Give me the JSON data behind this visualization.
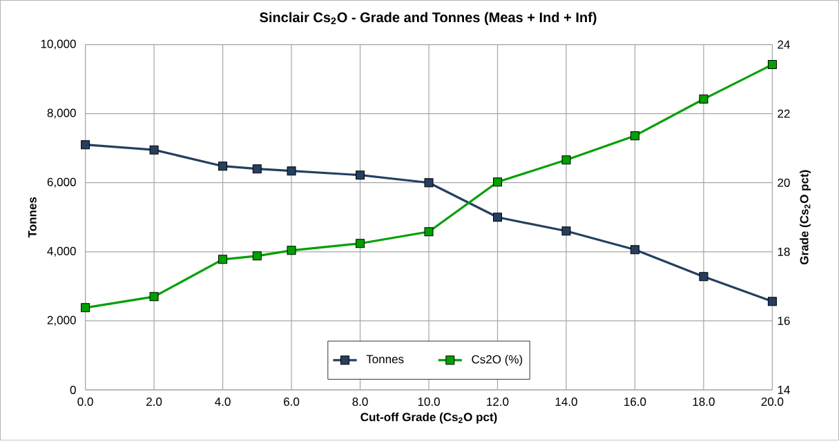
{
  "chart_data": {
    "type": "line",
    "title": "Sinclair Cs$_{2}$O - Grade and Tonnes (Meas + Ind + Inf)",
    "xlabel": "Cut-off Grade (Cs$_{2}$O pct)",
    "ylabel": "Tonnes",
    "y2label": "Grade (Cs$_{2}$O pct)",
    "x": [
      0,
      2,
      4,
      5,
      6,
      8,
      10,
      12,
      14,
      16,
      18,
      20
    ],
    "series": [
      {
        "name": "Tonnes",
        "color": "#243f60",
        "values": [
          7100,
          6950,
          6480,
          6400,
          6340,
          6220,
          6000,
          5000,
          4600,
          4060,
          3280,
          2560
        ]
      },
      {
        "name": "Cs2O (%)",
        "color": "#00a000",
        "axis": "y2",
        "values": [
          16.38,
          16.7,
          17.78,
          17.88,
          18.04,
          18.24,
          18.58,
          20.02,
          20.66,
          21.36,
          22.42,
          23.42
        ]
      }
    ],
    "xlim": [
      0,
      20
    ],
    "xticks": [
      {
        "value": 0,
        "label": "0.0"
      },
      {
        "value": 2,
        "label": "2.0"
      },
      {
        "value": 4,
        "label": "4.0"
      },
      {
        "value": 6,
        "label": "6.0"
      },
      {
        "value": 8,
        "label": "8.0"
      },
      {
        "value": 10,
        "label": "10.0"
      },
      {
        "value": 12,
        "label": "12.0"
      },
      {
        "value": 14,
        "label": "14.0"
      },
      {
        "value": 16,
        "label": "16.0"
      },
      {
        "value": 18,
        "label": "18.0"
      },
      {
        "value": 20,
        "label": "20.0"
      }
    ],
    "ylim": [
      0,
      10000
    ],
    "yticks": [
      {
        "value": 0,
        "label": "0"
      },
      {
        "value": 2000,
        "label": "2,000"
      },
      {
        "value": 4000,
        "label": "4,000"
      },
      {
        "value": 6000,
        "label": "6,000"
      },
      {
        "value": 8000,
        "label": "8,000"
      },
      {
        "value": 10000,
        "label": "10,000"
      }
    ],
    "y2lim": [
      14,
      24
    ],
    "y2ticks": [
      14,
      16,
      18,
      20,
      22,
      24
    ],
    "grid": true,
    "legend": "bottom",
    "marker": "square",
    "line_style": "solid"
  }
}
